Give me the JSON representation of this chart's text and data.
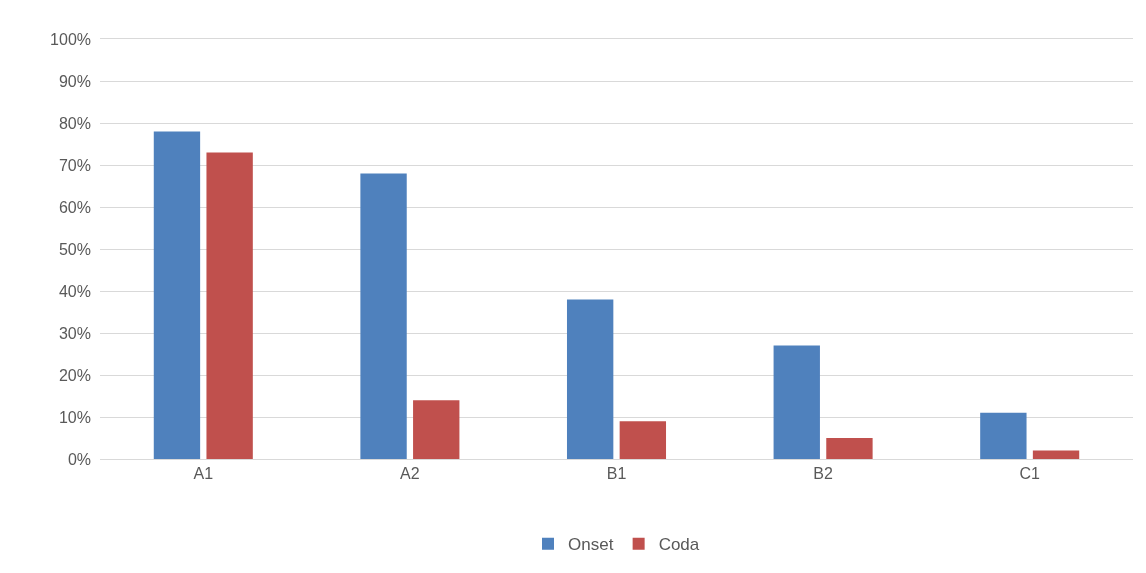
{
  "chart_data": {
    "type": "bar",
    "categories": [
      "A1",
      "A2",
      "B1",
      "B2",
      "C1"
    ],
    "series": [
      {
        "name": "Onset",
        "color": "#4f81bd",
        "values": [
          78,
          68,
          38,
          27,
          11
        ]
      },
      {
        "name": "Coda",
        "color": "#c0504d",
        "values": [
          73,
          14,
          9,
          5,
          2
        ]
      }
    ],
    "ylim": [
      0,
      100
    ],
    "yticks": [
      {
        "value": 0,
        "label": "0%"
      },
      {
        "value": 10,
        "label": "10%"
      },
      {
        "value": 20,
        "label": "20%"
      },
      {
        "value": 30,
        "label": "30%"
      },
      {
        "value": 40,
        "label": "40%"
      },
      {
        "value": 50,
        "label": "50%"
      },
      {
        "value": 60,
        "label": "60%"
      },
      {
        "value": 70,
        "label": "70%"
      },
      {
        "value": 80,
        "label": "80%"
      },
      {
        "value": 90,
        "label": "90%"
      },
      {
        "value": 100,
        "label": "100%"
      }
    ],
    "grid": "y",
    "legend": "bottom"
  }
}
